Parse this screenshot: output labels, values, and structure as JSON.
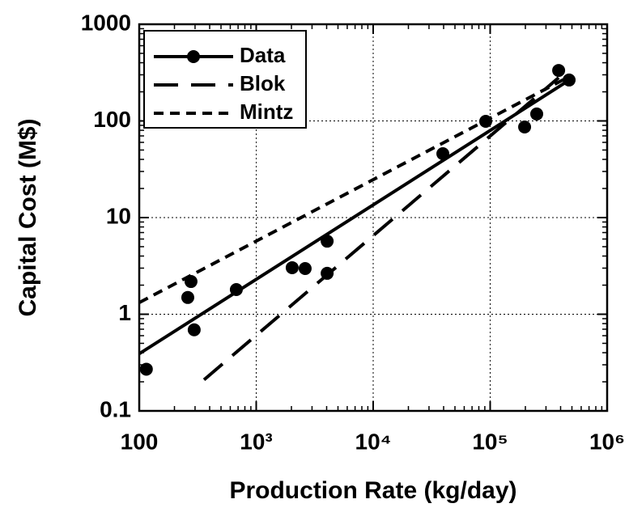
{
  "chart_data": {
    "type": "scatter",
    "x_label": "Production Rate (kg/day)",
    "y_label": "Capital Cost (M$)",
    "xlog": true,
    "ylog": true,
    "grid": true,
    "legend": "upper-left",
    "xlim": [
      100,
      1000000
    ],
    "ylim": [
      0.1,
      1000
    ],
    "xticks": [
      100,
      {
        "value": 1000,
        "label": "10³"
      },
      {
        "value": 10000,
        "label": "10⁴"
      },
      {
        "value": 100000,
        "label": "10⁵"
      },
      {
        "value": 1000000,
        "label": "10⁶"
      }
    ],
    "yticks": [
      0.1,
      1,
      10,
      100,
      1000
    ],
    "series": [
      {
        "name": "Data",
        "color": "#000000",
        "markers": true,
        "x": [
          115,
          260,
          277,
          295,
          676,
          2030,
          2620,
          4040,
          4040,
          39400,
          91600,
          197000,
          250000,
          385000,
          473000
        ],
        "values": [
          0.27,
          1.49,
          2.18,
          0.69,
          1.8,
          3.03,
          2.97,
          5.7,
          2.65,
          45.8,
          99,
          86.5,
          118,
          333,
          265
        ],
        "line": {
          "x": [
            100,
            430000
          ],
          "values": [
            0.39,
            245
          ]
        }
      },
      {
        "name": "Blok",
        "color": "#000000",
        "dash": "long",
        "x": [
          358,
          385000
        ],
        "values": [
          0.21,
          280
        ]
      },
      {
        "name": "Mintz",
        "color": "#000000",
        "dash": "short",
        "x": [
          100,
          430000
        ],
        "values": [
          1.32,
          270
        ]
      }
    ]
  }
}
